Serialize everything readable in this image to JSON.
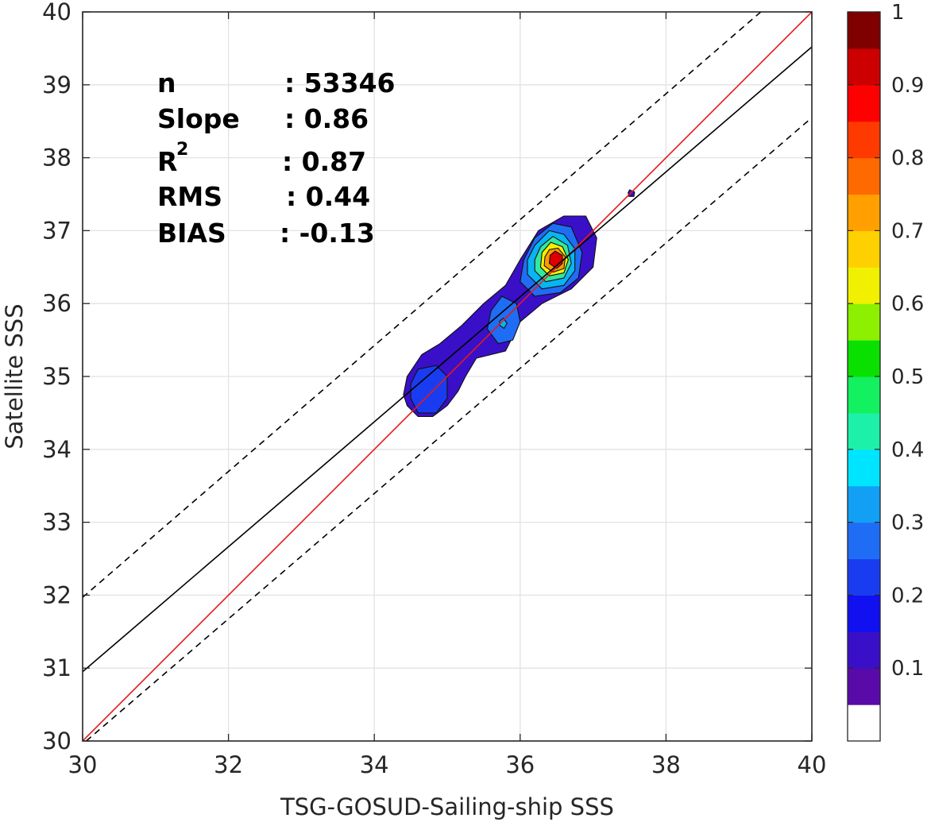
{
  "chart_data": {
    "type": "contour",
    "xlabel": "TSG-GOSUD-Sailing-ship SSS",
    "ylabel": "Satellite SSS",
    "xlim": [
      30,
      40
    ],
    "ylim": [
      30,
      40
    ],
    "x_ticks": [
      "30",
      "32",
      "34",
      "36",
      "38",
      "40"
    ],
    "y_ticks": [
      "30",
      "31",
      "32",
      "33",
      "34",
      "35",
      "36",
      "37",
      "38",
      "39",
      "40"
    ],
    "grid": true,
    "lines": [
      {
        "kind": "one-to-one",
        "color": "#e41a1c",
        "style": "solid",
        "points": [
          [
            30,
            30
          ],
          [
            40,
            40
          ]
        ]
      },
      {
        "kind": "regression",
        "color": "#000000",
        "style": "solid",
        "points": [
          [
            30,
            30.95
          ],
          [
            40,
            39.52
          ]
        ]
      },
      {
        "kind": "upper-bound",
        "color": "#000000",
        "style": "dashed",
        "points": [
          [
            30,
            31.97
          ],
          [
            39.3,
            40
          ]
        ]
      },
      {
        "kind": "lower-bound",
        "color": "#000000",
        "style": "dashed",
        "points": [
          [
            30.05,
            30
          ],
          [
            40,
            38.55
          ]
        ]
      }
    ],
    "density_peak": {
      "x": 36.5,
      "y": 36.6,
      "value": 1.0
    },
    "contour_levels": [
      {
        "level": 0.05,
        "color": "#3a0fc8",
        "polygon": [
          [
            34.45,
            34.6
          ],
          [
            34.6,
            34.45
          ],
          [
            34.8,
            34.45
          ],
          [
            35.0,
            34.6
          ],
          [
            35.15,
            34.8
          ],
          [
            35.25,
            35.0
          ],
          [
            35.4,
            35.25
          ],
          [
            35.6,
            35.3
          ],
          [
            35.8,
            35.35
          ],
          [
            36.0,
            35.75
          ],
          [
            36.3,
            36.0
          ],
          [
            36.7,
            36.2
          ],
          [
            37.0,
            36.5
          ],
          [
            37.05,
            36.9
          ],
          [
            36.9,
            37.2
          ],
          [
            36.6,
            37.2
          ],
          [
            36.25,
            37.0
          ],
          [
            36.0,
            36.6
          ],
          [
            35.8,
            36.25
          ],
          [
            35.5,
            36.0
          ],
          [
            35.2,
            35.7
          ],
          [
            34.9,
            35.45
          ],
          [
            34.65,
            35.3
          ],
          [
            34.45,
            35.0
          ],
          [
            34.4,
            34.75
          ]
        ]
      },
      {
        "level": 0.15,
        "color": "#1a3cf0",
        "polygon": [
          [
            34.5,
            34.7
          ],
          [
            34.6,
            34.5
          ],
          [
            34.85,
            34.5
          ],
          [
            35.0,
            34.7
          ],
          [
            35.0,
            35.0
          ],
          [
            34.85,
            35.15
          ],
          [
            34.6,
            35.1
          ],
          [
            34.5,
            34.9
          ]
        ]
      },
      {
        "level": 0.2,
        "color": "#1f6df5",
        "polygon": [
          [
            35.55,
            35.65
          ],
          [
            35.7,
            35.45
          ],
          [
            35.9,
            35.5
          ],
          [
            36.0,
            35.75
          ],
          [
            35.95,
            36.0
          ],
          [
            35.75,
            36.1
          ],
          [
            35.6,
            35.9
          ]
        ]
      },
      {
        "level": 0.25,
        "color": "#1f6df5",
        "polygon": [
          [
            36.0,
            36.3
          ],
          [
            36.2,
            36.1
          ],
          [
            36.55,
            36.15
          ],
          [
            36.8,
            36.35
          ],
          [
            36.85,
            36.7
          ],
          [
            36.7,
            37.05
          ],
          [
            36.45,
            37.1
          ],
          [
            36.2,
            36.9
          ],
          [
            36.05,
            36.6
          ]
        ]
      },
      {
        "level": 0.35,
        "color": "#08b4f2",
        "polygon": [
          [
            36.1,
            36.4
          ],
          [
            36.3,
            36.2
          ],
          [
            36.6,
            36.25
          ],
          [
            36.75,
            36.45
          ],
          [
            36.75,
            36.75
          ],
          [
            36.6,
            36.95
          ],
          [
            36.4,
            37.0
          ],
          [
            36.2,
            36.8
          ],
          [
            36.1,
            36.6
          ]
        ]
      },
      {
        "level": 0.45,
        "color": "#33e8a0",
        "polygon": [
          [
            36.2,
            36.45
          ],
          [
            36.35,
            36.3
          ],
          [
            36.6,
            36.35
          ],
          [
            36.7,
            36.55
          ],
          [
            36.65,
            36.8
          ],
          [
            36.45,
            36.92
          ],
          [
            36.28,
            36.78
          ],
          [
            36.2,
            36.6
          ]
        ]
      },
      {
        "level": 0.6,
        "color": "#f5f000",
        "polygon": [
          [
            36.28,
            36.5
          ],
          [
            36.4,
            36.38
          ],
          [
            36.6,
            36.42
          ],
          [
            36.66,
            36.6
          ],
          [
            36.58,
            36.78
          ],
          [
            36.42,
            36.84
          ],
          [
            36.3,
            36.7
          ]
        ]
      },
      {
        "level": 0.75,
        "color": "#ff9a00",
        "polygon": [
          [
            36.33,
            36.52
          ],
          [
            36.45,
            36.43
          ],
          [
            36.6,
            36.48
          ],
          [
            36.62,
            36.64
          ],
          [
            36.52,
            36.76
          ],
          [
            36.4,
            36.74
          ],
          [
            36.34,
            36.64
          ]
        ]
      },
      {
        "level": 0.9,
        "color": "#dd0000",
        "polygon": [
          [
            36.4,
            36.55
          ],
          [
            36.5,
            36.48
          ],
          [
            36.58,
            36.55
          ],
          [
            36.58,
            36.66
          ],
          [
            36.48,
            36.72
          ],
          [
            36.41,
            36.66
          ]
        ]
      },
      {
        "level": 0.05,
        "color": "#3a0fc8",
        "polygon": [
          [
            37.49,
            37.47
          ],
          [
            37.56,
            37.47
          ],
          [
            37.57,
            37.53
          ],
          [
            37.5,
            37.56
          ],
          [
            37.48,
            37.52
          ]
        ]
      },
      {
        "level": 0.3,
        "color": "#08b4f2",
        "polygon": [
          [
            35.72,
            35.7
          ],
          [
            35.78,
            35.66
          ],
          [
            35.82,
            35.73
          ],
          [
            35.77,
            35.8
          ],
          [
            35.72,
            35.76
          ]
        ]
      }
    ],
    "colorbar": {
      "ticks": [
        "0.1",
        "0.2",
        "0.3",
        "0.4",
        "0.5",
        "0.6",
        "0.7",
        "0.8",
        "0.9",
        "1"
      ],
      "colors": [
        "#ffffff",
        "#5a0aa8",
        "#3a0fc8",
        "#1010f0",
        "#1a3cf0",
        "#1f6df5",
        "#12a0f5",
        "#00e5ff",
        "#1df0a8",
        "#13f060",
        "#0ae000",
        "#8cf000",
        "#f0f000",
        "#ffd000",
        "#ffa000",
        "#ff6a00",
        "#ff3a00",
        "#ff0000",
        "#cc0000",
        "#800000"
      ]
    }
  },
  "stats": {
    "n_label": "n",
    "n_value": ": 53346",
    "slope_label": "Slope",
    "slope_value": ": 0.86",
    "r2_label": "R",
    "r2_sup": "2",
    "r2_value": ": 0.87",
    "rms_label": "RMS",
    "rms_value": ": 0.44",
    "bias_label": "BIAS",
    "bias_value": ": -0.13"
  }
}
